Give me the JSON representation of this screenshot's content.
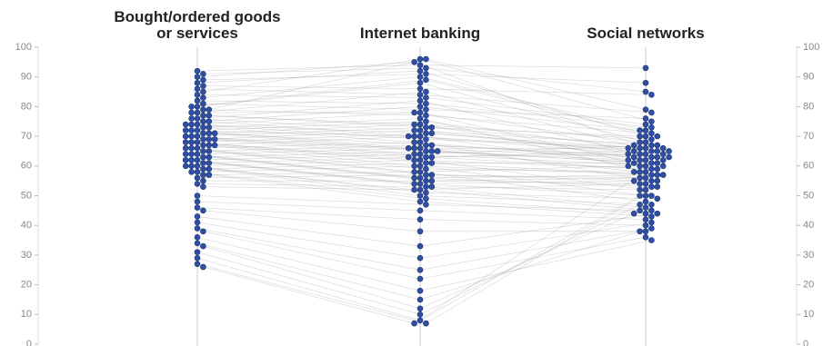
{
  "chart_data": {
    "type": "parallel-beeswarm",
    "categories": [
      "Bought/ordered goods or services",
      "Internet banking",
      "Social networks"
    ],
    "color": "#2f4fa3",
    "ylim": [
      0,
      100
    ],
    "yticks": [
      0,
      10,
      20,
      30,
      40,
      50,
      60,
      70,
      80,
      90,
      100
    ],
    "values": [
      [
        90,
        95,
        66
      ],
      [
        88,
        92,
        70
      ],
      [
        85,
        96,
        75
      ],
      [
        83,
        90,
        72
      ],
      [
        80,
        88,
        68
      ],
      [
        78,
        85,
        65
      ],
      [
        76,
        82,
        63
      ],
      [
        75,
        80,
        72
      ],
      [
        74,
        78,
        60
      ],
      [
        73,
        76,
        58
      ],
      [
        72,
        75,
        65
      ],
      [
        71,
        74,
        62
      ],
      [
        70,
        73,
        70
      ],
      [
        69,
        72,
        64
      ],
      [
        68,
        71,
        66
      ],
      [
        67,
        70,
        60
      ],
      [
        66,
        68,
        55
      ],
      [
        65,
        67,
        63
      ],
      [
        64,
        66,
        58
      ],
      [
        63,
        65,
        61
      ],
      [
        62,
        64,
        67
      ],
      [
        61,
        63,
        59
      ],
      [
        60,
        62,
        52
      ],
      [
        59,
        61,
        57
      ],
      [
        58,
        60,
        50
      ],
      [
        57,
        58,
        48
      ],
      [
        56,
        57,
        56
      ],
      [
        55,
        55,
        54
      ],
      [
        54,
        53,
        46
      ],
      [
        53,
        52,
        45
      ],
      [
        92,
        94,
        93
      ],
      [
        91,
        93,
        85
      ],
      [
        89,
        91,
        88
      ],
      [
        87,
        86,
        84
      ],
      [
        86,
        84,
        78
      ],
      [
        84,
        83,
        74
      ],
      [
        82,
        81,
        73
      ],
      [
        81,
        79,
        76
      ],
      [
        79,
        77,
        71
      ],
      [
        77,
        74,
        69
      ],
      [
        76,
        72,
        67
      ],
      [
        75,
        70,
        64
      ],
      [
        74,
        69,
        66
      ],
      [
        73,
        68,
        62
      ],
      [
        72,
        66,
        63
      ],
      [
        71,
        65,
        61
      ],
      [
        70,
        64,
        60
      ],
      [
        69,
        63,
        65
      ],
      [
        68,
        62,
        59
      ],
      [
        67,
        60,
        57
      ],
      [
        66,
        59,
        58
      ],
      [
        65,
        57,
        55
      ],
      [
        64,
        56,
        53
      ],
      [
        63,
        55,
        56
      ],
      [
        62,
        54,
        50
      ],
      [
        61,
        53,
        52
      ],
      [
        60,
        51,
        49
      ],
      [
        59,
        50,
        47
      ],
      [
        58,
        49,
        44
      ],
      [
        57,
        48,
        43
      ],
      [
        50,
        47,
        45
      ],
      [
        48,
        45,
        42
      ],
      [
        46,
        42,
        40
      ],
      [
        45,
        38,
        38
      ],
      [
        43,
        33,
        44
      ],
      [
        41,
        29,
        41
      ],
      [
        39,
        25,
        39
      ],
      [
        38,
        22,
        36
      ],
      [
        36,
        18,
        35
      ],
      [
        34,
        15,
        38
      ],
      [
        33,
        12,
        44
      ],
      [
        31,
        10,
        47
      ],
      [
        29,
        8,
        50
      ],
      [
        27,
        7,
        53
      ],
      [
        26,
        7,
        62
      ],
      [
        79,
        96,
        79
      ],
      [
        80,
        89,
        70
      ],
      [
        78,
        78,
        68
      ],
      [
        77,
        73,
        67
      ],
      [
        74,
        71,
        64
      ],
      [
        72,
        70,
        65
      ],
      [
        71,
        67,
        63
      ],
      [
        70,
        66,
        66
      ],
      [
        69,
        65,
        62
      ],
      [
        68,
        63,
        64
      ],
      [
        67,
        61,
        61
      ],
      [
        66,
        58,
        60
      ],
      [
        64,
        56,
        57
      ],
      [
        62,
        54,
        55
      ],
      [
        60,
        52,
        54
      ]
    ]
  }
}
